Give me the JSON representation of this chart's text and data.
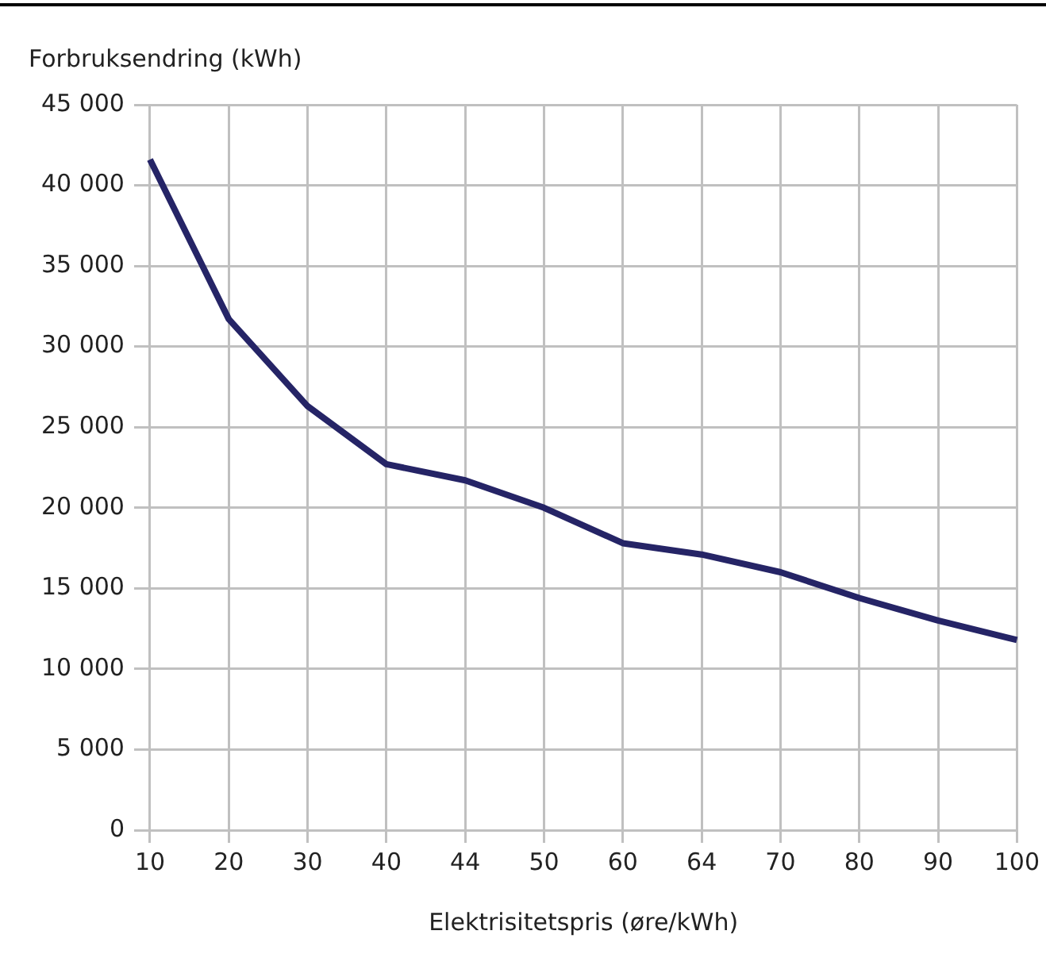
{
  "chart_data": {
    "type": "line",
    "ylabel": "Forbruksendring (kWh)",
    "xlabel": "Elektrisitetspris (øre/kWh)",
    "categories": [
      "10",
      "20",
      "30",
      "40",
      "44",
      "50",
      "60",
      "64",
      "70",
      "80",
      "90",
      "100"
    ],
    "series": [
      {
        "color": "#252466",
        "values": [
          41600,
          31700,
          26300,
          22700,
          21700,
          20000,
          17800,
          17100,
          16000,
          14400,
          13000,
          11800
        ]
      }
    ],
    "ylim": [
      0,
      45000
    ],
    "yticks": [
      {
        "value": 0,
        "label": "0"
      },
      {
        "value": 5000,
        "label": "5 000"
      },
      {
        "value": 10000,
        "label": "10 000"
      },
      {
        "value": 15000,
        "label": "15 000"
      },
      {
        "value": 20000,
        "label": "20 000"
      },
      {
        "value": 25000,
        "label": "25 000"
      },
      {
        "value": 30000,
        "label": "30 000"
      },
      {
        "value": 35000,
        "label": "35 000"
      },
      {
        "value": 40000,
        "label": "40 000"
      },
      {
        "value": 45000,
        "label": "45 000"
      }
    ],
    "grid": true,
    "legend": false,
    "marker": "none",
    "line_style": "solid"
  }
}
